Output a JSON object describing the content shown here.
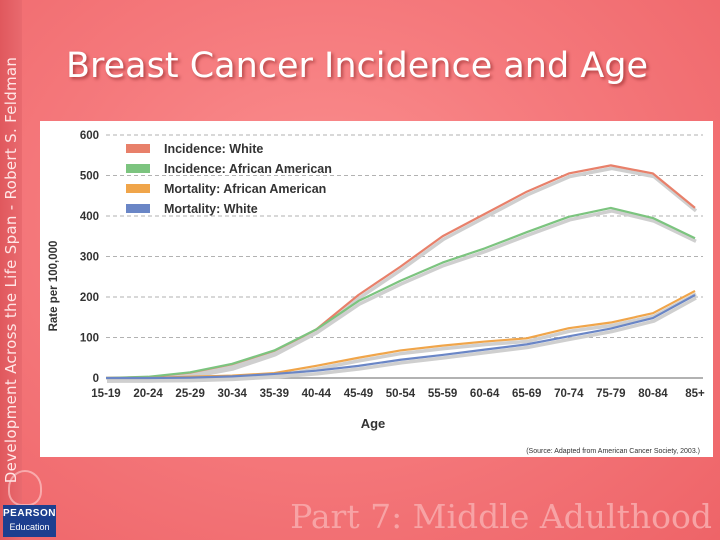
{
  "slide": {
    "title": "Breast Cancer Incidence and Age",
    "side_text": "Development Across the Life Span - Robert S. Feldman",
    "footer": "Part 7: Middle Adulthood",
    "logo_line1": "PEARSON",
    "logo_line2": "Education"
  },
  "colors": {
    "incidence_white": "#e8806a",
    "incidence_african_american": "#7cc47f",
    "mortality_african_american": "#f0a54a",
    "mortality_white": "#6a86c6",
    "grid": "#999999",
    "axis_text": "#333333"
  },
  "chart_data": {
    "type": "line",
    "title": "",
    "xlabel": "Age",
    "ylabel": "Rate per 100,000",
    "ylim": [
      0,
      600
    ],
    "yticks": [
      0,
      100,
      200,
      300,
      400,
      500,
      600
    ],
    "grid": true,
    "legend_position": "top-left",
    "source": "(Source: Adapted from American Cancer Society, 2003.)",
    "categories": [
      "15-19",
      "20-24",
      "25-29",
      "30-34",
      "35-39",
      "40-44",
      "45-49",
      "50-54",
      "55-59",
      "60-64",
      "65-69",
      "70-74",
      "75-79",
      "80-84",
      "85+"
    ],
    "series": [
      {
        "name": "Incidence: White",
        "color_key": "incidence_white",
        "values": [
          0,
          2,
          10,
          30,
          65,
          120,
          205,
          275,
          350,
          405,
          460,
          505,
          525,
          505,
          420
        ]
      },
      {
        "name": "Incidence: African American",
        "color_key": "incidence_african_american",
        "values": [
          0,
          3,
          14,
          35,
          68,
          120,
          190,
          240,
          285,
          320,
          360,
          398,
          420,
          395,
          345
        ]
      },
      {
        "name": "Mortality: African American",
        "color_key": "mortality_african_american",
        "values": [
          0,
          0,
          3,
          6,
          12,
          30,
          50,
          68,
          80,
          90,
          98,
          123,
          137,
          160,
          215
        ]
      },
      {
        "name": "Mortality: White",
        "color_key": "mortality_white",
        "values": [
          0,
          0,
          1,
          4,
          10,
          18,
          30,
          45,
          57,
          70,
          83,
          103,
          122,
          148,
          205
        ]
      }
    ]
  }
}
